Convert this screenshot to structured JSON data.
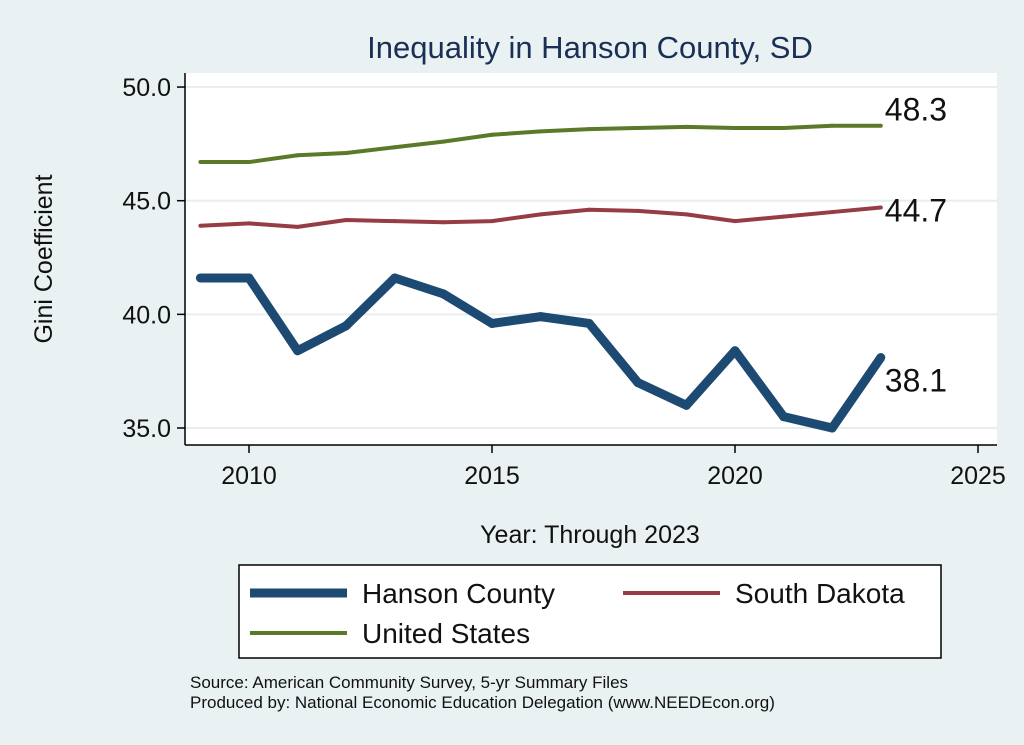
{
  "chart_data": {
    "type": "line",
    "title": "Inequality in Hanson County, SD",
    "xlabel": "Year: Through 2023",
    "ylabel": "Gini Coefficient",
    "xlim": [
      2009,
      2025
    ],
    "ylim": [
      35.0,
      50.0
    ],
    "x_ticks": [
      "2010",
      "2015",
      "2020",
      "2025"
    ],
    "y_ticks": [
      "35.0",
      "40.0",
      "45.0",
      "50.0"
    ],
    "grid": true,
    "legend_position": "bottom",
    "x": [
      2009,
      2010,
      2011,
      2012,
      2013,
      2014,
      2015,
      2016,
      2017,
      2018,
      2019,
      2020,
      2021,
      2022,
      2023
    ],
    "series": [
      {
        "name": "Hanson County",
        "color": "#1d4a73",
        "values": [
          41.6,
          41.6,
          38.4,
          39.5,
          41.6,
          40.9,
          39.6,
          39.9,
          39.6,
          37.0,
          36.0,
          38.4,
          35.5,
          35.0,
          38.1
        ],
        "end_label": "38.1"
      },
      {
        "name": "South Dakota",
        "color": "#963d43",
        "values": [
          43.9,
          44.0,
          43.85,
          44.15,
          44.1,
          44.05,
          44.1,
          44.4,
          44.6,
          44.55,
          44.4,
          44.1,
          44.3,
          44.5,
          44.7
        ],
        "end_label": "44.7"
      },
      {
        "name": "United States",
        "color": "#5a7a2a",
        "values": [
          46.7,
          46.7,
          47.0,
          47.1,
          47.35,
          47.6,
          47.9,
          48.05,
          48.15,
          48.2,
          48.25,
          48.2,
          48.2,
          48.3,
          48.3
        ],
        "end_label": "48.3"
      }
    ],
    "source_lines": [
      "Source: American Community Survey, 5-yr Summary Files",
      "Produced by: National Economic Education Delegation (www.NEEDEcon.org)"
    ]
  }
}
